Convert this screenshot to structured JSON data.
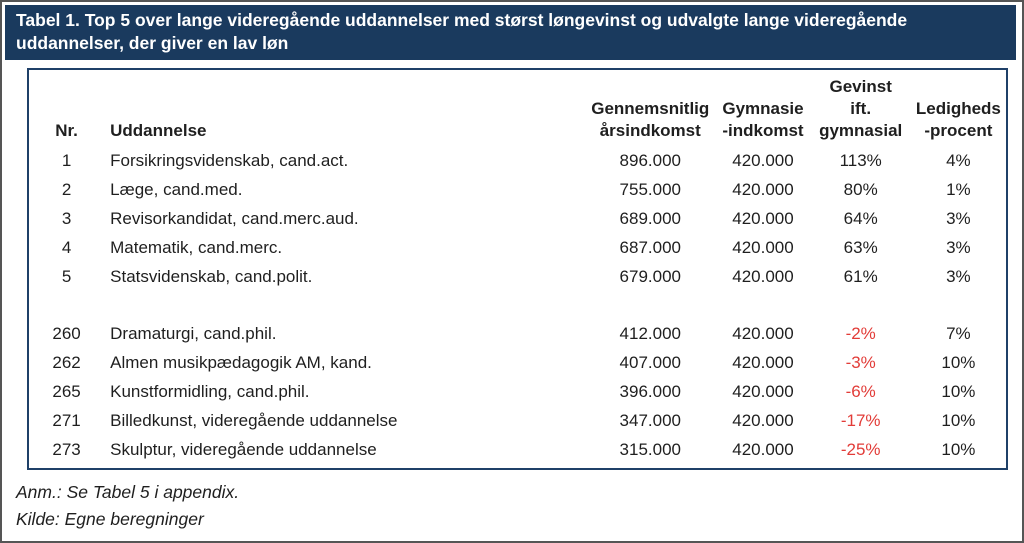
{
  "title": "Tabel 1. Top 5 over lange videregående uddannelser med størst løngevinst og udvalgte lange videregående uddannelser, der giver en lav løn",
  "colors": {
    "title_bar_bg": "#1a3a5e",
    "title_text": "#ffffff",
    "table_border": "#1f4068",
    "body_text": "#1f1f1f",
    "negative_value": "#e23c38",
    "page_frame": "#555555"
  },
  "table": {
    "headers": {
      "nr": "Nr.",
      "uddannelse": "Uddannelse",
      "avg_line1": "Gennemsnitlig",
      "avg_line2": "årsindkomst",
      "gym_line1": "Gymnasie",
      "gym_line2": "-indkomst",
      "gain_line1": "Gevinst",
      "gain_line2": "ift.",
      "gain_line3": "gymnasial",
      "unemployment_line1": "Ledigheds",
      "unemployment_line2": "-procent"
    },
    "top_rows": [
      {
        "nr": "1",
        "uddannelse": "Forsikringsvidenskab, cand.act.",
        "avg_income": "896.000",
        "gym_income": "420.000",
        "gain": "113%",
        "unemployment": "4%"
      },
      {
        "nr": "2",
        "uddannelse": "Læge, cand.med.",
        "avg_income": "755.000",
        "gym_income": "420.000",
        "gain": "80%",
        "unemployment": "1%"
      },
      {
        "nr": "3",
        "uddannelse": "Revisorkandidat, cand.merc.aud.",
        "avg_income": "689.000",
        "gym_income": "420.000",
        "gain": "64%",
        "unemployment": "3%"
      },
      {
        "nr": "4",
        "uddannelse": "Matematik, cand.merc.",
        "avg_income": "687.000",
        "gym_income": "420.000",
        "gain": "63%",
        "unemployment": "3%"
      },
      {
        "nr": "5",
        "uddannelse": "Statsvidenskab, cand.polit.",
        "avg_income": "679.000",
        "gym_income": "420.000",
        "gain": "61%",
        "unemployment": "3%"
      }
    ],
    "low_rows": [
      {
        "nr": "260",
        "uddannelse": "Dramaturgi, cand.phil.",
        "avg_income": "412.000",
        "gym_income": "420.000",
        "gain": "-2%",
        "unemployment": "7%"
      },
      {
        "nr": "262",
        "uddannelse": "Almen musikpædagogik AM, kand.",
        "avg_income": "407.000",
        "gym_income": "420.000",
        "gain": "-3%",
        "unemployment": "10%"
      },
      {
        "nr": "265",
        "uddannelse": "Kunstformidling, cand.phil.",
        "avg_income": "396.000",
        "gym_income": "420.000",
        "gain": "-6%",
        "unemployment": "10%"
      },
      {
        "nr": "271",
        "uddannelse": "Billedkunst, videregående uddannelse",
        "avg_income": "347.000",
        "gym_income": "420.000",
        "gain": "-17%",
        "unemployment": "10%"
      },
      {
        "nr": "273",
        "uddannelse": "Skulptur, videregående uddannelse",
        "avg_income": "315.000",
        "gym_income": "420.000",
        "gain": "-25%",
        "unemployment": "10%"
      }
    ]
  },
  "notes": {
    "anm": "Anm.: Se Tabel 5 i appendix.",
    "kilde": "Kilde: Egne beregninger"
  }
}
